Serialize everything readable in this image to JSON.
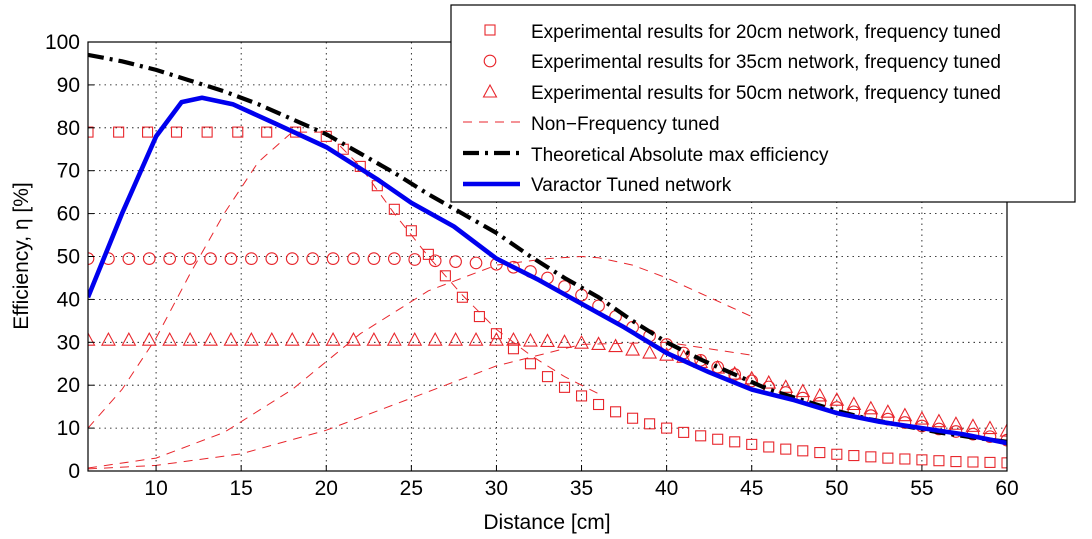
{
  "chart_data": {
    "type": "line",
    "title": "",
    "xlabel": "Distance [cm]",
    "ylabel": "Efficiency,  η [%]",
    "xlim": [
      6,
      60
    ],
    "ylim": [
      0,
      100
    ],
    "xticks": [
      "10",
      "15",
      "20",
      "25",
      "30",
      "35",
      "40",
      "45",
      "50",
      "55",
      "60"
    ],
    "yticks": [
      "0",
      "10",
      "20",
      "30",
      "40",
      "50",
      "60",
      "70",
      "80",
      "90",
      "100"
    ],
    "grid": true,
    "legend_position": "top-right",
    "colors": {
      "red": "#e8262c",
      "black": "#000000",
      "blue": "#0000ee"
    },
    "series": [
      {
        "name": "Experimental results for 20cm network, frequency tuned",
        "marker": "square",
        "color": "#e8262c",
        "x": [
          6,
          7.8,
          9.5,
          11.2,
          13,
          14.8,
          16.5,
          18.2,
          20,
          21,
          22,
          23,
          24,
          25,
          26,
          27,
          28,
          29,
          30,
          31,
          32,
          33,
          34,
          35,
          36,
          37,
          38,
          39,
          40,
          41,
          42,
          43,
          44,
          45,
          46,
          47,
          48,
          49,
          50,
          51,
          52,
          53,
          54,
          55,
          56,
          57,
          58,
          59,
          60
        ],
        "y": [
          79,
          79,
          79,
          79,
          79,
          79,
          79,
          79,
          78,
          75,
          71,
          66.5,
          61,
          56,
          50.5,
          45.5,
          40.5,
          36,
          32,
          28.5,
          25,
          22,
          19.5,
          17.5,
          15.5,
          13.8,
          12.3,
          11,
          10,
          9,
          8.2,
          7.4,
          6.8,
          6.2,
          5.6,
          5.1,
          4.7,
          4.3,
          3.9,
          3.6,
          3.3,
          3,
          2.8,
          2.6,
          2.4,
          2.2,
          2.1,
          2,
          1.9
        ]
      },
      {
        "name": "Experimental results for 35cm network, frequency tuned",
        "marker": "circle",
        "color": "#e8262c",
        "x": [
          6,
          7.2,
          8.4,
          9.6,
          10.8,
          12,
          13.2,
          14.4,
          15.6,
          16.8,
          18,
          19.2,
          20.4,
          21.6,
          22.8,
          24,
          25.2,
          26.4,
          27.6,
          28.8,
          30,
          31,
          32,
          33,
          34,
          35,
          36,
          37,
          38,
          39,
          40,
          41,
          42,
          43,
          44,
          45,
          46,
          47,
          48,
          49,
          50,
          51,
          52,
          53,
          54,
          55,
          56,
          57,
          58,
          59,
          60
        ],
        "y": [
          49.5,
          49.5,
          49.5,
          49.5,
          49.5,
          49.5,
          49.5,
          49.5,
          49.5,
          49.5,
          49.5,
          49.5,
          49.5,
          49.5,
          49.5,
          49.5,
          49.3,
          49,
          48.8,
          48.5,
          48.2,
          47.5,
          46.5,
          45,
          43,
          41,
          38.5,
          36,
          33.5,
          31.5,
          29.5,
          27.5,
          25.8,
          24.2,
          22.5,
          21,
          19.6,
          18.3,
          17,
          15.8,
          14.8,
          13.8,
          12.9,
          12.1,
          11.3,
          10.5,
          9.8,
          9.2,
          8.6,
          8,
          7.2
        ]
      },
      {
        "name": "Experimental results for 50cm network, frequency tuned",
        "marker": "triangle",
        "color": "#e8262c",
        "x": [
          6,
          7.2,
          8.4,
          9.6,
          10.8,
          12,
          13.2,
          14.4,
          15.6,
          16.8,
          18,
          19.2,
          20.4,
          21.6,
          22.8,
          24,
          25.2,
          26.4,
          27.6,
          28.8,
          30,
          31,
          32,
          33,
          34,
          35,
          36,
          37,
          38,
          39,
          40,
          41,
          42,
          43,
          44,
          45,
          46,
          47,
          48,
          49,
          50,
          51,
          52,
          53,
          54,
          55,
          56,
          57,
          58,
          59,
          60
        ],
        "y": [
          30.5,
          30.5,
          30.5,
          30.5,
          30.5,
          30.5,
          30.5,
          30.5,
          30.5,
          30.5,
          30.5,
          30.5,
          30.5,
          30.5,
          30.5,
          30.5,
          30.5,
          30.5,
          30.5,
          30.5,
          30.5,
          30.5,
          30.3,
          30.2,
          30,
          29.8,
          29.5,
          29,
          28.2,
          27.5,
          27,
          26.5,
          25.3,
          24,
          22.6,
          21.5,
          20.5,
          19.5,
          18.5,
          17.5,
          16.5,
          15.5,
          14.5,
          13.7,
          12.9,
          12.1,
          11.5,
          10.9,
          10.4,
          9.9,
          9.3
        ]
      },
      {
        "name": "Non−Frequency tuned",
        "style": "dashed",
        "color": "#e8262c",
        "curves": [
          {
            "x": [
              6,
              8,
              10,
              12,
              14,
              16,
              18,
              20,
              22,
              24,
              26,
              28,
              30,
              32,
              34,
              36
            ],
            "y": [
              10,
              19,
              31,
              46,
              60,
              72,
              79,
              79,
              71,
              60,
              50,
              41,
              33,
              27,
              22,
              18
            ]
          },
          {
            "x": [
              6,
              10,
              14,
              18,
              22,
              26,
              30,
              33,
              35,
              36,
              38,
              40,
              45
            ],
            "y": [
              0.7,
              3,
              9,
              19,
              32,
              42,
              48,
              49.5,
              50,
              49.7,
              48,
              45,
              36
            ]
          },
          {
            "x": [
              6,
              10,
              15,
              20,
              25,
              30,
              35,
              40,
              45
            ],
            "y": [
              0.5,
              1.3,
              4,
              9.5,
              17,
              24.5,
              29.5,
              30,
              27
            ]
          }
        ]
      },
      {
        "name": "Theoretical Absolute max efficiency",
        "style": "dash-dot",
        "color": "#000000",
        "x": [
          6,
          8,
          10,
          12,
          14,
          16,
          18,
          20,
          22,
          24,
          26,
          28,
          30,
          32,
          34,
          36,
          38,
          40,
          42,
          44,
          46,
          48,
          50,
          52,
          54,
          56,
          58,
          60
        ],
        "y": [
          97,
          95.5,
          93.5,
          91,
          88.5,
          85.5,
          82,
          78.5,
          74,
          69.5,
          64.5,
          60,
          55.5,
          50,
          45,
          40.5,
          35,
          30,
          26,
          22.5,
          19,
          16.5,
          14,
          12,
          10.5,
          9,
          7.8,
          6.8
        ]
      },
      {
        "name": "Varactor Tuned network",
        "style": "solid",
        "color": "#0000ee",
        "x": [
          6,
          8,
          10,
          11.5,
          12.7,
          14.5,
          17,
          20,
          23,
          25,
          27.5,
          30,
          32.5,
          35,
          37.5,
          40,
          42.5,
          45,
          47.5,
          50,
          52.5,
          55,
          57.5,
          60
        ],
        "y": [
          40.5,
          60,
          78,
          86,
          87,
          85.5,
          81,
          75.5,
          68,
          62.5,
          57,
          49.5,
          44.5,
          39,
          33.5,
          27.5,
          23,
          19,
          16.5,
          13.5,
          11.5,
          10,
          8.5,
          6.5
        ]
      }
    ]
  }
}
